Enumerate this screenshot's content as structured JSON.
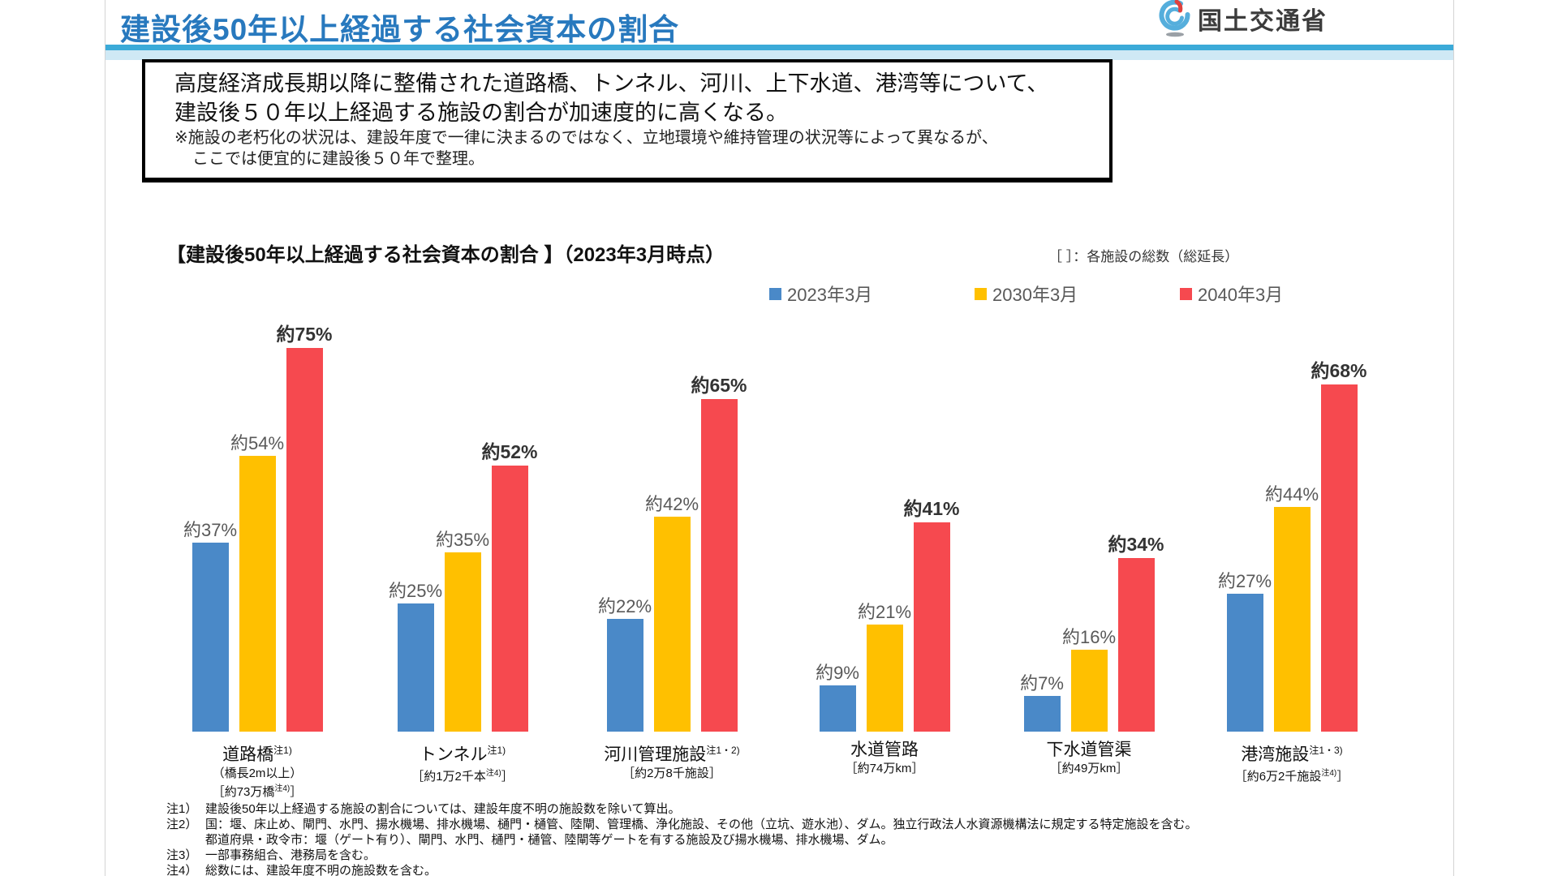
{
  "header": {
    "title": "建設後50年以上経過する社会資本の割合",
    "agency": "国土交通省"
  },
  "summary_box": {
    "line1": "高度経済成長期以降に整備された道路橋、トンネル、河川、上下水道、港湾等について、",
    "line2": "建設後５０年以上経過する施設の割合が加速度的に高くなる。",
    "note1": "※施設の老朽化の状況は、建設年度で一律に決まるのではなく、立地環境や維持管理の状況等によって異なるが、",
    "note2": "ここでは便宜的に建設後５０年で整理。"
  },
  "chart_header": {
    "title": "【建設後50年以上経過する社会資本の割合 】（2023年3月時点）",
    "unit_note": "［ ］：各施設の総数（総延長）"
  },
  "chart_data": {
    "type": "bar",
    "unit": "%",
    "ylim": [
      0,
      80
    ],
    "legend_position": "top",
    "grid": false,
    "categories": [
      {
        "name": "道路橋",
        "note": "注1)",
        "details": [
          [
            {
              "t": "（橋長2m以上）"
            }
          ],
          [
            {
              "t": "［約73万橋"
            },
            {
              "t": "注4)",
              "sup": true
            },
            {
              "t": "］"
            }
          ]
        ]
      },
      {
        "name": "トンネル",
        "note": "注1)",
        "details": [
          [
            {
              "t": "［約1万2千本"
            },
            {
              "t": "注4)",
              "sup": true
            },
            {
              "t": "］"
            }
          ]
        ]
      },
      {
        "name": "河川管理施設",
        "note": "注1・2)",
        "details": [
          [
            {
              "t": "［約2万8千施設］"
            }
          ]
        ]
      },
      {
        "name": "水道管路",
        "note": "",
        "details": [
          [
            {
              "t": "［約74万km］"
            }
          ]
        ]
      },
      {
        "name": "下水道管渠",
        "note": "",
        "details": [
          [
            {
              "t": "［約49万km］"
            }
          ]
        ]
      },
      {
        "name": "港湾施設",
        "note": "注1・3)",
        "details": [
          [
            {
              "t": "［約6万2千施設"
            },
            {
              "t": "注4)",
              "sup": true
            },
            {
              "t": "］"
            }
          ]
        ]
      }
    ],
    "series": [
      {
        "name": "2023年3月",
        "color": "#4A89C8",
        "label_style": "normal",
        "values": [
          37,
          25,
          22,
          9,
          7,
          27
        ],
        "labels": [
          "約37%",
          "約25%",
          "約22%",
          "約9%",
          "約7%",
          "約27%"
        ]
      },
      {
        "name": "2030年3月",
        "color": "#FFC000",
        "label_style": "normal",
        "values": [
          54,
          35,
          42,
          21,
          16,
          44
        ],
        "labels": [
          "約54%",
          "約35%",
          "約42%",
          "約21%",
          "約16%",
          "約44%"
        ]
      },
      {
        "name": "2040年3月",
        "color": "#F6494F",
        "label_style": "bold",
        "values": [
          75,
          52,
          65,
          41,
          34,
          68
        ],
        "labels": [
          "約75%",
          "約52%",
          "約65%",
          "約41%",
          "約34%",
          "約68%"
        ]
      }
    ]
  },
  "footnotes": [
    {
      "label": "注1）",
      "lines": [
        "建設後50年以上経過する施設の割合については、建設年度不明の施設数を除いて算出。"
      ]
    },
    {
      "label": "注2）",
      "lines": [
        "国：堰、床止め、閘門、水門、揚水機場、排水機場、樋門・樋管、陸閘、管理橋、浄化施設、その他（立坑、遊水池）、ダム。独立行政法人水資源機構法に規定する特定施設を含む。",
        "都道府県・政令市：堰（ゲート有り）、閘門、水門、樋門・樋管、陸閘等ゲートを有する施設及び揚水機場、排水機場、ダム。"
      ]
    },
    {
      "label": "注3）",
      "lines": [
        "一部事務組合、港務局を含む。"
      ]
    },
    {
      "label": "注4）",
      "lines": [
        "総数には、建設年度不明の施設数を含む。"
      ]
    }
  ]
}
